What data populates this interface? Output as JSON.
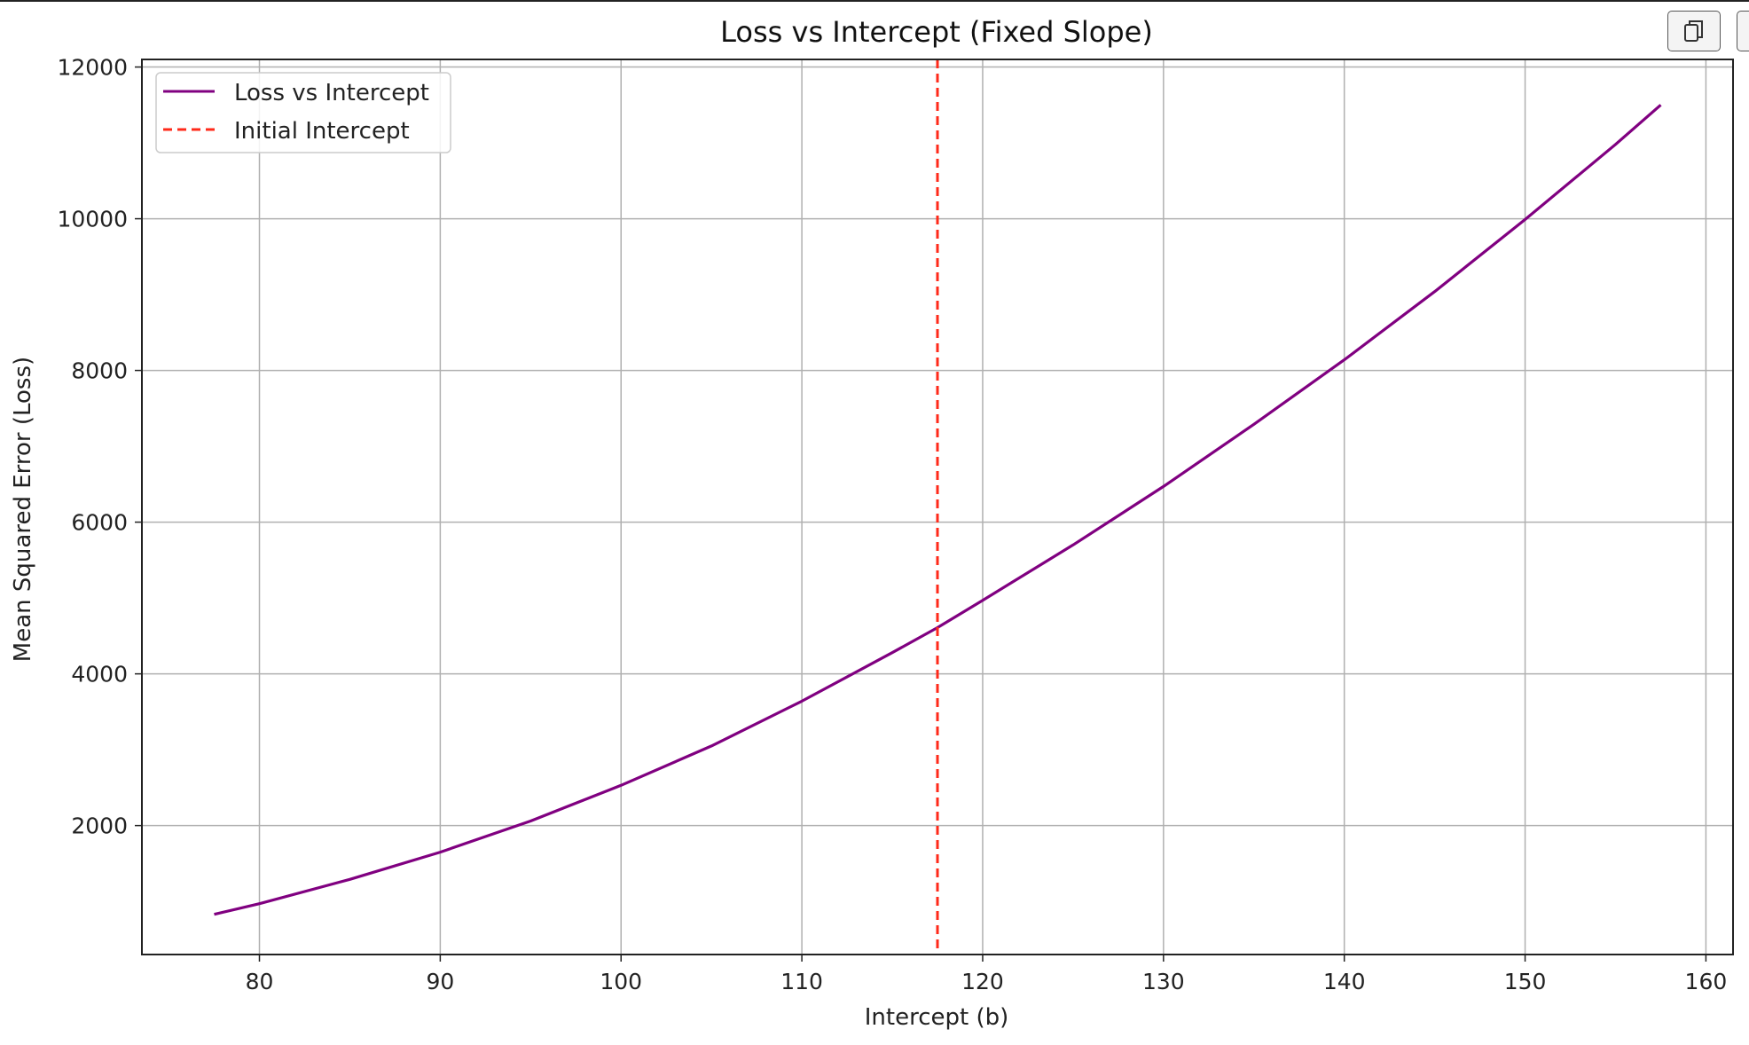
{
  "chart_data": {
    "type": "line",
    "title": "Loss vs Intercept (Fixed Slope)",
    "xlabel": "Intercept (b)",
    "ylabel": "Mean Squared Error (Loss)",
    "xlim": [
      73.5,
      161.5
    ],
    "ylim": [
      300,
      12100
    ],
    "xticks": [
      80,
      90,
      100,
      110,
      120,
      130,
      140,
      150,
      160
    ],
    "yticks": [
      2000,
      4000,
      6000,
      8000,
      10000,
      12000
    ],
    "grid": true,
    "legend_position": "top-left",
    "series": [
      {
        "name": "Loss vs Intercept",
        "color": "#800080",
        "style": "solid",
        "x": [
          77.5,
          80,
          85,
          90,
          95,
          100,
          105,
          110,
          115,
          117.5,
          120,
          125,
          130,
          135,
          140,
          145,
          150,
          155,
          157.5
        ],
        "y": [
          830,
          970,
          1290,
          1650,
          2060,
          2530,
          3050,
          3640,
          4280,
          4610,
          4970,
          5700,
          6470,
          7290,
          8140,
          9040,
          9990,
          10980,
          11500
        ]
      },
      {
        "name": "Initial Intercept",
        "color": "#ff2a1a",
        "style": "dashed",
        "vline_x": 117.5
      }
    ]
  },
  "toolbar": {
    "copy_icon": "copy-icon",
    "more_icon": "more-icon"
  }
}
